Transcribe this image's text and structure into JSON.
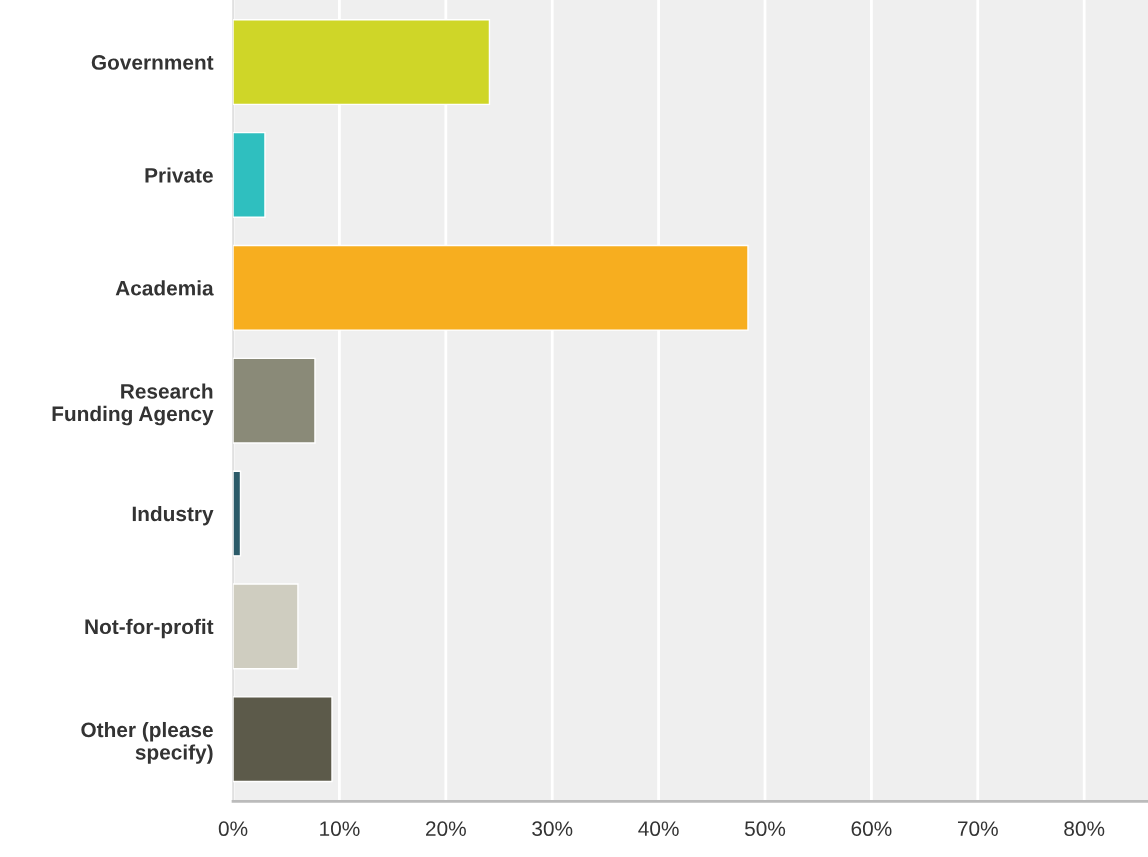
{
  "chart_data": {
    "type": "bar",
    "orientation": "horizontal",
    "categories": [
      "Government",
      "Private",
      "Academia",
      "Research\nFunding Agency",
      "Industry",
      "Not-for-profit",
      "Other (please\nspecify)"
    ],
    "values": [
      24.1,
      3.0,
      48.4,
      7.7,
      0.7,
      6.1,
      9.3
    ],
    "colors": [
      "#cfd628",
      "#2fbfbf",
      "#f7ae1f",
      "#8a8a78",
      "#2b5a68",
      "#cfcdc0",
      "#5c5a4a"
    ],
    "xlim": [
      0,
      86
    ],
    "xticks": [
      {
        "value": 0,
        "label": "0%"
      },
      {
        "value": 10,
        "label": "10%"
      },
      {
        "value": 20,
        "label": "20%"
      },
      {
        "value": 30,
        "label": "30%"
      },
      {
        "value": 40,
        "label": "40%"
      },
      {
        "value": 50,
        "label": "50%"
      },
      {
        "value": 60,
        "label": "60%"
      },
      {
        "value": 70,
        "label": "70%"
      },
      {
        "value": 80,
        "label": "80%"
      }
    ],
    "grid": "x"
  }
}
